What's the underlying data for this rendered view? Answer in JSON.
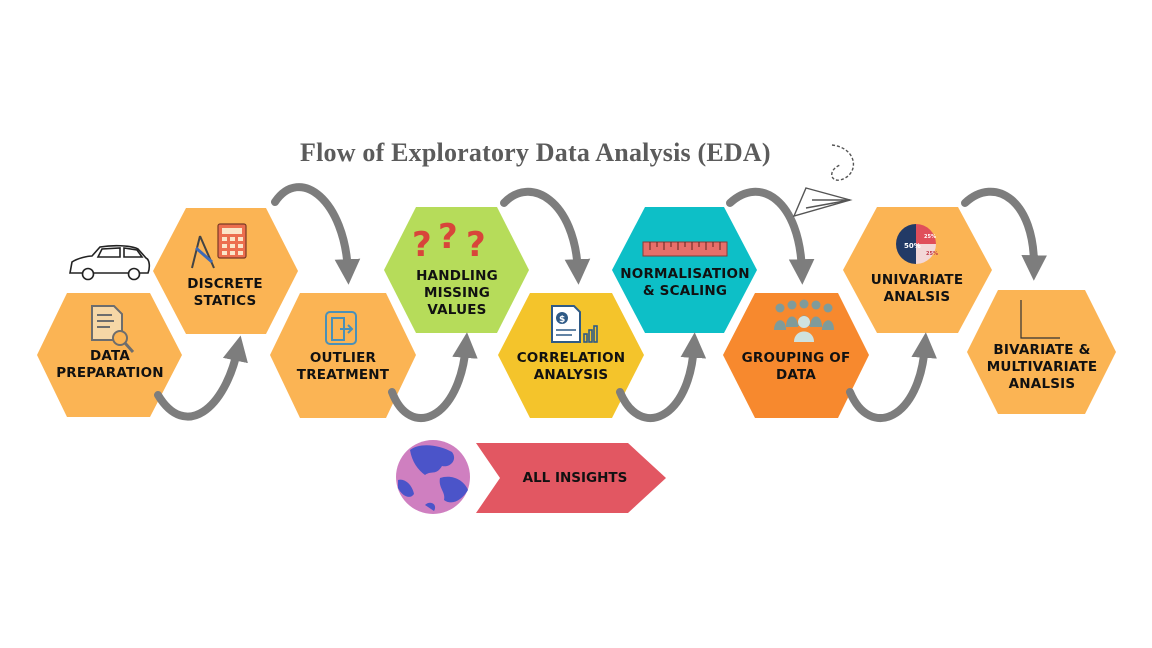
{
  "title": "Flow of Exploratory Data Analysis (EDA)",
  "steps": [
    {
      "lines": [
        "DATA",
        "PREPARATION"
      ],
      "icon": "document-search-icon",
      "color": "#fbb454"
    },
    {
      "lines": [
        "DISCRETE",
        "STATICS"
      ],
      "icon": "calculator-icon",
      "color": "#fbb454"
    },
    {
      "lines": [
        "OUTLIER",
        "TREATMENT"
      ],
      "icon": "exit-door-icon",
      "color": "#fbb454"
    },
    {
      "lines": [
        "HANDLING",
        "MISSING",
        "VALUES"
      ],
      "icon": "question-marks-icon",
      "color": "#b6dc5a"
    },
    {
      "lines": [
        "CORRELATION",
        "ANALYSIS"
      ],
      "icon": "financial-report-icon",
      "color": "#f4c42b"
    },
    {
      "lines": [
        "NORMALISATION",
        "& SCALING"
      ],
      "icon": "ruler-icon",
      "color": "#0dbfc7"
    },
    {
      "lines": [
        "GROUPING OF",
        "DATA"
      ],
      "icon": "people-group-icon",
      "color": "#f7892e"
    },
    {
      "lines": [
        "UNIVARIATE",
        "ANALSIS"
      ],
      "icon": "pie-chart-icon",
      "color": "#fbb454"
    },
    {
      "lines": [
        "BIVARIATE &",
        "MULTIVARIATE",
        "ANALSIS"
      ],
      "icon": "axes-icon",
      "color": "#fbb454"
    }
  ],
  "insights": {
    "label": "ALL INSIGHTS",
    "color": "#e25762",
    "icon": "globe-icon"
  },
  "pie_values": {
    "main": "50%",
    "slice_a": "25%",
    "slice_b": "25%"
  },
  "decorations": [
    "car-icon",
    "paper-plane-icon"
  ],
  "arrow_color": "#7d7d7d"
}
